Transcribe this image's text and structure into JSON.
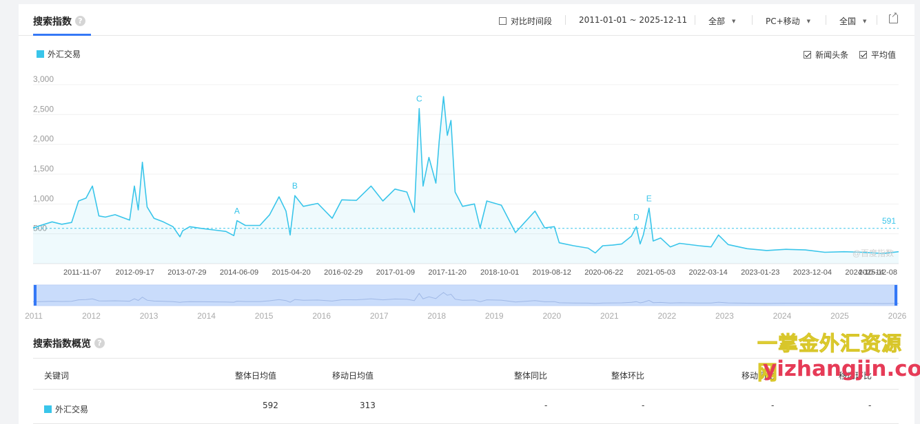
{
  "tab": {
    "title": "搜索指数",
    "help": "?"
  },
  "controls": {
    "compare_label": "对比时间段",
    "date_range": "2011-01-01 ~ 2025-12-11",
    "source": "全部",
    "device": "PC+移动",
    "region": "全国"
  },
  "legend": {
    "series_name": "外汇交易",
    "color": "#39c5ea"
  },
  "toggles": {
    "news_label": "新闻头条",
    "avg_label": "平均值"
  },
  "chart_data": {
    "type": "area",
    "title": "",
    "series_name": "外汇交易",
    "color": "#39c5ea",
    "ylim": [
      0,
      3000
    ],
    "y_ticks": [
      "3,000",
      "2,500",
      "2,000",
      "1,500",
      "1,000",
      "500"
    ],
    "y_tick_values": [
      3000,
      2500,
      2000,
      1500,
      1000,
      500
    ],
    "x_tick_labels": [
      "2011-11-07",
      "2012-09-17",
      "2013-07-29",
      "2014-06-09",
      "2015-04-20",
      "2016-02-29",
      "2017-01-09",
      "2017-11-20",
      "2018-10-01",
      "2019-08-12",
      "2020-06-22",
      "2021-05-03",
      "2022-03-14",
      "2023-01-23",
      "2023-12-04",
      "2024-10-14",
      "2025-12-08"
    ],
    "average": 591,
    "average_label": "591",
    "points": [
      [
        "2011-01-01",
        600
      ],
      [
        "2011-03-01",
        650
      ],
      [
        "2011-05-01",
        700
      ],
      [
        "2011-07-01",
        660
      ],
      [
        "2011-09-01",
        690
      ],
      [
        "2011-10-15",
        1050
      ],
      [
        "2011-12-01",
        1100
      ],
      [
        "2012-01-10",
        1300
      ],
      [
        "2012-02-20",
        800
      ],
      [
        "2012-04-01",
        780
      ],
      [
        "2012-06-01",
        820
      ],
      [
        "2012-08-01",
        760
      ],
      [
        "2012-09-01",
        730
      ],
      [
        "2012-10-01",
        1300
      ],
      [
        "2012-10-25",
        900
      ],
      [
        "2012-11-20",
        1700
      ],
      [
        "2012-12-20",
        950
      ],
      [
        "2013-02-01",
        760
      ],
      [
        "2013-04-01",
        700
      ],
      [
        "2013-06-01",
        620
      ],
      [
        "2013-07-15",
        450
      ],
      [
        "2013-08-01",
        550
      ],
      [
        "2013-09-15",
        620
      ],
      [
        "2013-12-01",
        590
      ],
      [
        "2014-03-01",
        560
      ],
      [
        "2014-05-01",
        540
      ],
      [
        "2014-06-20",
        470
      ],
      [
        "2014-07-10",
        720
      ],
      [
        "2014-09-01",
        640
      ],
      [
        "2014-12-01",
        640
      ],
      [
        "2015-02-01",
        820
      ],
      [
        "2015-04-01",
        1120
      ],
      [
        "2015-05-15",
        880
      ],
      [
        "2015-06-10",
        480
      ],
      [
        "2015-07-10",
        1140
      ],
      [
        "2015-09-01",
        960
      ],
      [
        "2015-12-01",
        1010
      ],
      [
        "2016-03-01",
        760
      ],
      [
        "2016-05-01",
        1070
      ],
      [
        "2016-08-01",
        1060
      ],
      [
        "2016-11-01",
        1300
      ],
      [
        "2017-01-15",
        1050
      ],
      [
        "2017-04-01",
        1250
      ],
      [
        "2017-06-15",
        1200
      ],
      [
        "2017-08-01",
        860
      ],
      [
        "2017-09-01",
        2600
      ],
      [
        "2017-09-25",
        1300
      ],
      [
        "2017-11-01",
        1780
      ],
      [
        "2017-12-15",
        1350
      ],
      [
        "2018-01-05",
        2050
      ],
      [
        "2018-02-01",
        2800
      ],
      [
        "2018-02-25",
        2150
      ],
      [
        "2018-03-20",
        2400
      ],
      [
        "2018-04-15",
        1200
      ],
      [
        "2018-06-01",
        960
      ],
      [
        "2018-08-15",
        1000
      ],
      [
        "2018-09-20",
        600
      ],
      [
        "2018-11-01",
        1050
      ],
      [
        "2019-02-01",
        980
      ],
      [
        "2019-05-01",
        520
      ],
      [
        "2019-07-01",
        700
      ],
      [
        "2019-09-01",
        880
      ],
      [
        "2019-11-01",
        600
      ],
      [
        "2020-01-01",
        620
      ],
      [
        "2020-02-01",
        350
      ],
      [
        "2020-05-01",
        300
      ],
      [
        "2020-08-01",
        260
      ],
      [
        "2020-09-15",
        180
      ],
      [
        "2020-11-01",
        300
      ],
      [
        "2021-01-01",
        310
      ],
      [
        "2021-03-01",
        330
      ],
      [
        "2021-05-01",
        460
      ],
      [
        "2021-06-01",
        620
      ],
      [
        "2021-06-25",
        330
      ],
      [
        "2021-07-15",
        480
      ],
      [
        "2021-08-20",
        930
      ],
      [
        "2021-09-15",
        380
      ],
      [
        "2021-11-01",
        430
      ],
      [
        "2022-01-01",
        280
      ],
      [
        "2022-03-01",
        340
      ],
      [
        "2022-07-01",
        300
      ],
      [
        "2022-09-15",
        280
      ],
      [
        "2022-11-01",
        480
      ],
      [
        "2023-01-01",
        320
      ],
      [
        "2023-05-01",
        250
      ],
      [
        "2023-09-01",
        220
      ],
      [
        "2024-01-01",
        240
      ],
      [
        "2024-05-01",
        230
      ],
      [
        "2024-09-01",
        190
      ],
      [
        "2025-01-01",
        200
      ],
      [
        "2025-05-01",
        190
      ],
      [
        "2025-09-01",
        170
      ],
      [
        "2025-12-11",
        200
      ]
    ],
    "annotations": [
      {
        "label": "A",
        "date": "2014-07-10",
        "value": 720
      },
      {
        "label": "B",
        "date": "2015-07-10",
        "value": 1140
      },
      {
        "label": "C",
        "date": "2017-09-01",
        "value": 2600
      },
      {
        "label": "D",
        "date": "2021-06-01",
        "value": 620
      },
      {
        "label": "E",
        "date": "2021-08-20",
        "value": 930
      }
    ],
    "watermark": "@百度指数"
  },
  "slider": {
    "year_labels": [
      "2011",
      "2012",
      "2013",
      "2014",
      "2015",
      "2016",
      "2017",
      "2018",
      "2019",
      "2020",
      "2021",
      "2022",
      "2023",
      "2024",
      "2025",
      "2026"
    ]
  },
  "overview": {
    "title": "搜索指数概览",
    "headers": [
      "关键词",
      "整体日均值",
      "移动日均值",
      "整体同比",
      "整体环比",
      "移动同比",
      "移动环比"
    ],
    "rows": [
      {
        "keyword": "外汇交易",
        "overall_avg": "592",
        "mobile_avg": "313",
        "overall_yoy": "-",
        "overall_mom": "-",
        "mobile_yoy": "-",
        "mobile_mom": "-"
      }
    ]
  },
  "watermarks": {
    "cn": "一掌金外汇资源网",
    "url": "yizhangjin.com"
  }
}
